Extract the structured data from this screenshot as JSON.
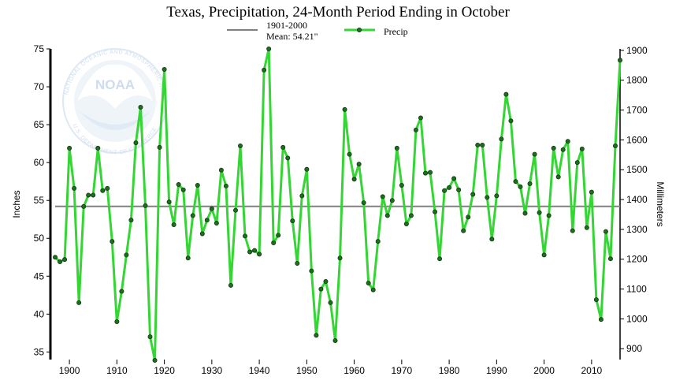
{
  "chart_data": {
    "type": "line",
    "title": "Texas, Precipitation, 24-Month Period Ending in October",
    "ylabel": "Inches",
    "y2label": "Millimeters",
    "xlabel": "",
    "xlim": [
      1896,
      2016
    ],
    "ylim": [
      34,
      75
    ],
    "y2lim": [
      863.6,
      1905
    ],
    "x_ticks": [
      1900,
      1910,
      1920,
      1930,
      1940,
      1950,
      1960,
      1970,
      1980,
      1990,
      2000,
      2010
    ],
    "y_ticks": [
      35,
      40,
      45,
      50,
      55,
      60,
      65,
      70,
      75
    ],
    "y2_ticks": [
      900,
      1000,
      1100,
      1200,
      1300,
      1400,
      1500,
      1600,
      1700,
      1800,
      1900
    ],
    "grid": false,
    "legend": "top-center",
    "series": [
      {
        "name": "1901-2000",
        "sublabel": "Mean: 54.21\"",
        "kind": "reference-line",
        "color": "#808080",
        "value": 54.21
      },
      {
        "name": "Precip",
        "kind": "line-markers",
        "color": "#33d633",
        "marker_color": "#1f6e1f",
        "x": [
          1897,
          1898,
          1899,
          1900,
          1901,
          1902,
          1903,
          1904,
          1905,
          1906,
          1907,
          1908,
          1909,
          1910,
          1911,
          1912,
          1913,
          1914,
          1915,
          1916,
          1917,
          1918,
          1919,
          1920,
          1921,
          1922,
          1923,
          1924,
          1925,
          1926,
          1927,
          1928,
          1929,
          1930,
          1931,
          1932,
          1933,
          1934,
          1935,
          1936,
          1937,
          1938,
          1939,
          1940,
          1941,
          1942,
          1943,
          1944,
          1945,
          1946,
          1947,
          1948,
          1949,
          1950,
          1951,
          1952,
          1953,
          1954,
          1955,
          1956,
          1957,
          1958,
          1959,
          1960,
          1961,
          1962,
          1963,
          1964,
          1965,
          1966,
          1967,
          1968,
          1969,
          1970,
          1971,
          1972,
          1973,
          1974,
          1975,
          1976,
          1977,
          1978,
          1979,
          1980,
          1981,
          1982,
          1983,
          1984,
          1985,
          1986,
          1987,
          1988,
          1989,
          1990,
          1991,
          1992,
          1993,
          1994,
          1995,
          1996,
          1997,
          1998,
          1999,
          2000,
          2001,
          2002,
          2003,
          2004,
          2005,
          2006,
          2007,
          2008,
          2009,
          2010,
          2011,
          2012,
          2013,
          2014,
          2015,
          2016
        ],
        "y": [
          47.5,
          46.9,
          47.2,
          61.9,
          56.6,
          41.5,
          54.2,
          55.7,
          55.7,
          61.9,
          56.3,
          56.6,
          49.6,
          39.0,
          43.0,
          47.8,
          52.4,
          62.6,
          67.3,
          54.3,
          37.0,
          33.9,
          62.0,
          72.3,
          54.8,
          51.8,
          57.1,
          56.4,
          47.4,
          53.0,
          57.0,
          50.6,
          52.4,
          53.9,
          52.0,
          59.0,
          56.9,
          43.8,
          53.7,
          62.2,
          50.3,
          48.2,
          48.4,
          47.9,
          72.2,
          75.0,
          49.4,
          50.4,
          62.0,
          60.6,
          52.3,
          46.7,
          55.6,
          59.1,
          45.7,
          37.2,
          43.3,
          44.3,
          41.5,
          36.5,
          47.4,
          67.0,
          61.1,
          57.8,
          59.8,
          54.7,
          44.1,
          43.2,
          49.6,
          55.5,
          53.0,
          55.0,
          61.9,
          57.0,
          51.9,
          53.0,
          64.3,
          65.9,
          58.6,
          58.7,
          53.5,
          47.3,
          56.3,
          56.7,
          57.9,
          56.4,
          51.0,
          52.8,
          55.8,
          62.3,
          62.3,
          55.4,
          49.9,
          55.6,
          63.1,
          69.0,
          65.5,
          57.5,
          56.8,
          53.3,
          57.2,
          61.1,
          53.4,
          47.8,
          53.0,
          61.9,
          58.1,
          61.7,
          62.8,
          51.0,
          60.0,
          61.8,
          51.4,
          56.1,
          41.9,
          39.3,
          50.9,
          47.3,
          62.2,
          73.5
        ]
      }
    ]
  },
  "logo": {
    "name": "NOAA",
    "ring_text": "NATIONAL OCEANIC AND ATMOSPHERIC ADMINISTRATION",
    "ring_text_bottom": "U.S. DEPARTMENT OF COMMERCE"
  }
}
